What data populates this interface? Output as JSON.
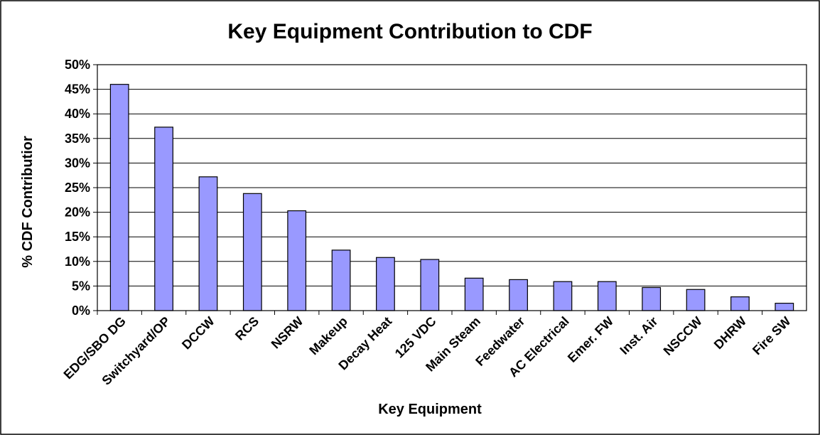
{
  "chart_data": {
    "type": "bar",
    "title": "Key Equipment Contribution to CDF",
    "xlabel": "Key Equipment",
    "ylabel": "% CDF Contributior",
    "ylim": [
      0,
      50
    ],
    "yticks": [
      "0%",
      "5%",
      "10%",
      "15%",
      "20%",
      "25%",
      "30%",
      "35%",
      "40%",
      "45%",
      "50%"
    ],
    "grid": true,
    "legend": "none",
    "bar_color": "#9999ff",
    "categories": [
      "EDG/SBO DG",
      "Switchyard/OP",
      "DCCW",
      "RCS",
      "NSRW",
      "Makeup",
      "Decay Heat",
      "125 VDC",
      "Main Steam",
      "Feedwater",
      "AC Electrical",
      "Emer. FW",
      "Inst. Air",
      "NSCCW",
      "DHRW",
      "Fire SW"
    ],
    "values": [
      46,
      37.3,
      27.2,
      23.8,
      20.3,
      12.3,
      10.8,
      10.4,
      6.6,
      6.3,
      5.9,
      5.9,
      4.7,
      4.3,
      2.8,
      1.5
    ]
  }
}
